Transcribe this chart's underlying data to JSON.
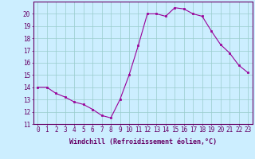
{
  "x": [
    0,
    1,
    2,
    3,
    4,
    5,
    6,
    7,
    8,
    9,
    10,
    11,
    12,
    13,
    14,
    15,
    16,
    17,
    18,
    19,
    20,
    21,
    22,
    23
  ],
  "y": [
    14.0,
    14.0,
    13.5,
    13.2,
    12.8,
    12.6,
    12.2,
    11.7,
    11.5,
    13.0,
    15.0,
    17.4,
    20.0,
    20.0,
    19.8,
    20.5,
    20.4,
    20.0,
    19.8,
    18.6,
    17.5,
    16.8,
    15.8,
    15.2
  ],
  "ylim": [
    11,
    21
  ],
  "xlim_min": -0.5,
  "xlim_max": 23.5,
  "yticks": [
    11,
    12,
    13,
    14,
    15,
    16,
    17,
    18,
    19,
    20
  ],
  "xticks": [
    0,
    1,
    2,
    3,
    4,
    5,
    6,
    7,
    8,
    9,
    10,
    11,
    12,
    13,
    14,
    15,
    16,
    17,
    18,
    19,
    20,
    21,
    22,
    23
  ],
  "xlabel": "Windchill (Refroidissement éolien,°C)",
  "line_color": "#990099",
  "marker": "s",
  "marker_size": 2,
  "bg_color": "#cceeff",
  "grid_color": "#99cccc",
  "axis_color": "#660066",
  "tick_color": "#660066",
  "label_color": "#660066",
  "xlabel_fontsize": 6,
  "tick_fontsize": 5.5,
  "linewidth": 0.8
}
